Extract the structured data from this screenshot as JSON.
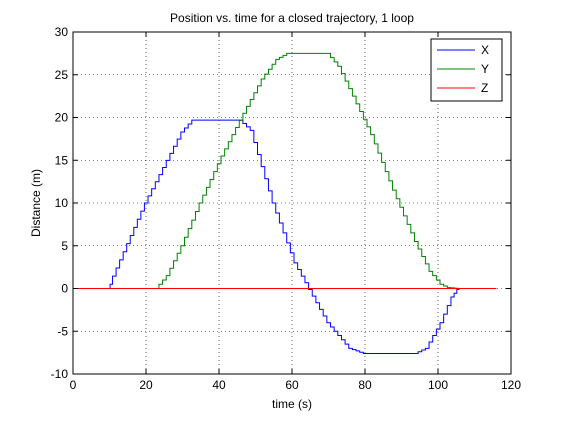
{
  "chart_data": {
    "type": "line",
    "title": "Position vs. time for a closed trajectory, 1 loop",
    "xlabel": "time (s)",
    "ylabel": "Distance (m)",
    "xlim": [
      0,
      120
    ],
    "ylim": [
      -10,
      30
    ],
    "xticks": [
      0,
      20,
      40,
      60,
      80,
      100,
      120
    ],
    "yticks": [
      -10,
      -5,
      0,
      5,
      10,
      15,
      20,
      25,
      30
    ],
    "grid": true,
    "legend_position": "top-right",
    "series": [
      {
        "name": "X",
        "color": "#0000ff",
        "points": [
          [
            0,
            0
          ],
          [
            10,
            0
          ],
          [
            10.3,
            0.5
          ],
          [
            20,
            10
          ],
          [
            30,
            18.3
          ],
          [
            33,
            19.7
          ],
          [
            46,
            19.7
          ],
          [
            49,
            18.5
          ],
          [
            55,
            10
          ],
          [
            61,
            3
          ],
          [
            70,
            -4
          ],
          [
            76,
            -7
          ],
          [
            80,
            -7.6
          ],
          [
            94,
            -7.6
          ],
          [
            97,
            -7
          ],
          [
            101,
            -4
          ],
          [
            104,
            -1
          ],
          [
            105.5,
            -0.1
          ],
          [
            106,
            0
          ],
          [
            116,
            0
          ]
        ]
      },
      {
        "name": "Y",
        "color": "#008000",
        "points": [
          [
            0,
            0
          ],
          [
            23,
            0
          ],
          [
            26,
            1.5
          ],
          [
            30,
            5
          ],
          [
            35,
            10
          ],
          [
            41,
            15.5
          ],
          [
            47,
            20.5
          ],
          [
            52,
            24.5
          ],
          [
            56,
            26.8
          ],
          [
            59,
            27.5
          ],
          [
            70,
            27.5
          ],
          [
            73,
            26
          ],
          [
            77,
            22.5
          ],
          [
            82,
            18
          ],
          [
            88,
            11.5
          ],
          [
            94,
            5.5
          ],
          [
            98,
            2
          ],
          [
            101,
            0.5
          ],
          [
            103,
            0.1
          ],
          [
            106,
            0
          ],
          [
            116,
            0
          ]
        ]
      },
      {
        "name": "Z",
        "color": "#ff0000",
        "points": [
          [
            0,
            0
          ],
          [
            116,
            0
          ]
        ]
      }
    ]
  }
}
